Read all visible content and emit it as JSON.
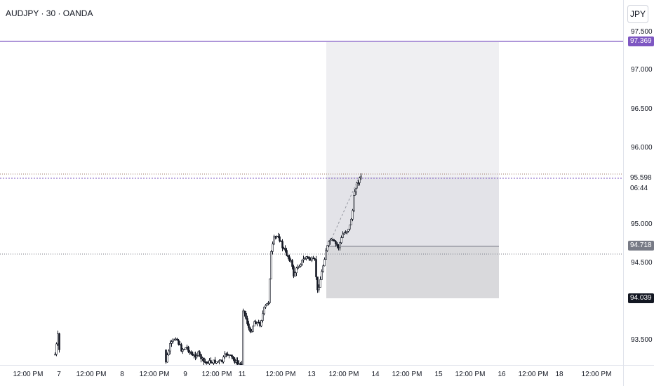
{
  "header": {
    "symbol_title": "AUDJPY · 30 · OANDA",
    "currency": "JPY"
  },
  "price_axis": {
    "ticks": [
      "97.500",
      "97.000",
      "96.500",
      "96.000",
      "95.000",
      "94.500",
      "93.500"
    ]
  },
  "time_axis": {
    "labels": [
      "12:00 PM",
      "7",
      "12:00 PM",
      "8",
      "12:00 PM",
      "9",
      "12:00 PM",
      "11",
      "12:00 PM",
      "13",
      "12:00 PM",
      "14",
      "12:00 PM",
      "15",
      "12:00 PM",
      "16",
      "12:00 PM",
      "18",
      "12:00 PM"
    ]
  },
  "price_tags": {
    "alert_high": "97.369",
    "current_price": "95.598",
    "countdown": "06:44",
    "entry": "94.718",
    "stop": "94.039"
  },
  "colors": {
    "accent_line": "#7e57c2",
    "candle": "#131722",
    "tag_dark": "#131722",
    "tag_gray": "#787b86",
    "target_zone": "#efeff2",
    "stop_zone": "#d5d5d8"
  }
}
